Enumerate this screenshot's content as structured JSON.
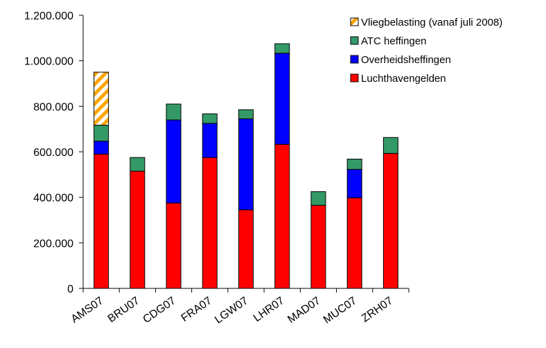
{
  "chart_data": {
    "type": "bar",
    "stacked": true,
    "categories": [
      "AMS07",
      "BRU07",
      "CDG07",
      "FRA07",
      "LGW07",
      "LHR07",
      "MAD07",
      "MUC07",
      "ZRH07"
    ],
    "series": [
      {
        "name": "Luchthavengelden",
        "color": "#ff0000",
        "pattern": "solid",
        "values": [
          590000,
          515000,
          375000,
          575000,
          345000,
          633000,
          365000,
          398000,
          593000
        ]
      },
      {
        "name": "Overheidsheffingen",
        "color": "#0000ff",
        "pattern": "solid",
        "values": [
          57000,
          0,
          365000,
          150000,
          400000,
          400000,
          0,
          125000,
          0
        ]
      },
      {
        "name": "ATC heffingen",
        "color": "#339966",
        "pattern": "solid",
        "values": [
          70000,
          60000,
          70000,
          42000,
          40000,
          42000,
          60000,
          45000,
          70000
        ]
      },
      {
        "name": "Vliegbelasting (vanaf juli 2008)",
        "color": "#ffa500",
        "pattern": "diagonal-stripes",
        "values": [
          233000,
          0,
          0,
          0,
          0,
          0,
          0,
          0,
          0
        ]
      }
    ],
    "ylim": [
      0,
      1200000
    ],
    "yticks": [
      0,
      200000,
      400000,
      600000,
      800000,
      1000000,
      1200000
    ],
    "ytick_labels": [
      "0",
      "200.000",
      "400.000",
      "600.000",
      "800.000",
      "1.000.000",
      "1.200.000"
    ],
    "legend_placement": "top-right",
    "legend_order": [
      "Vliegbelasting (vanaf juli 2008)",
      "ATC heffingen",
      "Overheidsheffingen",
      "Luchthavengelden"
    ],
    "grid": false,
    "title": "",
    "xlabel": "",
    "ylabel": ""
  }
}
